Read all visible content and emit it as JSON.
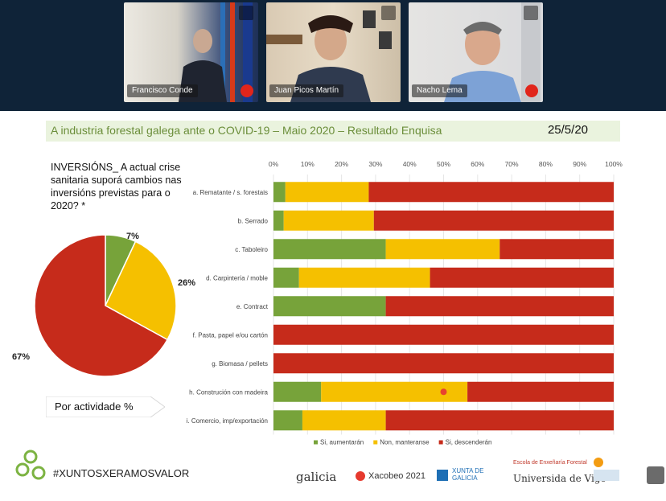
{
  "meeting": {
    "participants": [
      {
        "name": "Francisco Conde"
      },
      {
        "name": "Juan Picos Martín"
      },
      {
        "name": "Nacho Lema"
      }
    ]
  },
  "slide": {
    "title": "A industria forestal galega ante o COVID-19 – Maio 2020 – Resultado Enquisa",
    "date": "25/5/20",
    "question": "INVERSIÓNS_ A actual crise sanitaria suporá cambios nas inversións previstas para o 2020? *",
    "ribbon_label": "Por actividade %",
    "footer": {
      "hashtag": "#XUNTOSXERAMOSVALOR",
      "logos": [
        "galicia",
        "Xacobeo 2021",
        "XUNTA DE GALICIA",
        "Escola de Enxeñaría Forestal",
        "Universida de Vigo"
      ]
    }
  },
  "chart_data": [
    {
      "type": "pie",
      "labels": [
        "Si, aumentarán",
        "Non, manteranse",
        "Si, descenderán"
      ],
      "values": [
        7,
        26,
        67
      ],
      "value_labels": [
        "7%",
        "26%",
        "67%"
      ],
      "colors": [
        "#77a33a",
        "#f5c000",
        "#c62b1b"
      ]
    },
    {
      "type": "bar",
      "orientation": "horizontal-stacked",
      "xlim": [
        0,
        100
      ],
      "x_ticks": [
        "0%",
        "10%",
        "20%",
        "30%",
        "40%",
        "50%",
        "60%",
        "70%",
        "80%",
        "90%",
        "100%"
      ],
      "categories": [
        "a. Rematante / s. forestais",
        "b. Serrado",
        "c. Taboleiro",
        "d. Carpintería / moble",
        "e. Contract",
        "f. Pasta, papel e/ou cartón",
        "g. Biomasa / pellets",
        "h. Construción con madeira",
        "i. Comercio, imp/exportación"
      ],
      "series": [
        {
          "name": "Si, aumentarán",
          "color": "#77a33a",
          "values": [
            3.5,
            3,
            33,
            7.5,
            33,
            0,
            0,
            14,
            8.5
          ]
        },
        {
          "name": "Non, manteranse",
          "color": "#f5c000",
          "values": [
            24.5,
            26.5,
            33.5,
            38.5,
            0,
            0,
            0,
            43,
            24.5
          ]
        },
        {
          "name": "Si, descenderán",
          "color": "#c62b1b",
          "values": [
            72,
            70.5,
            33.5,
            54,
            67,
            100,
            100,
            43,
            67
          ]
        }
      ],
      "legend_position": "bottom"
    }
  ]
}
